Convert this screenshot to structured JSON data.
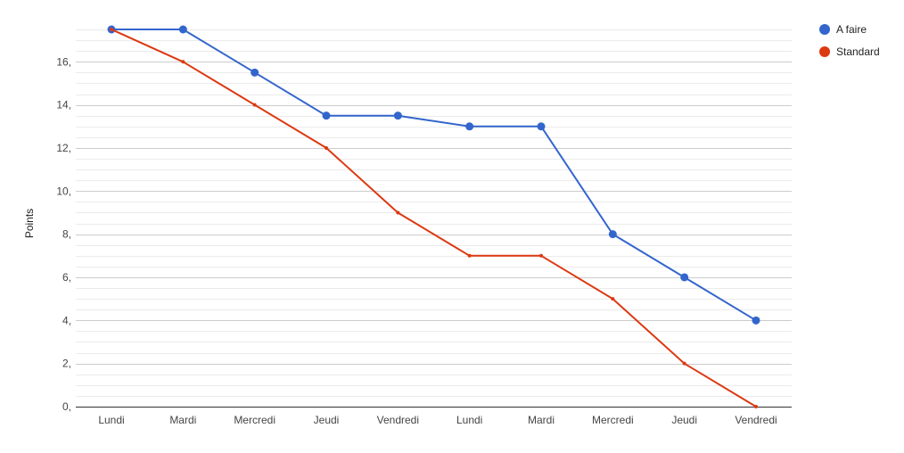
{
  "colors": {
    "background": "#ffffff",
    "major_grid": "#cccccc",
    "minor_grid": "#ebebeb",
    "baseline": "#333333",
    "text": "#444444"
  },
  "chart_data": {
    "type": "line",
    "title": "",
    "xlabel": "",
    "ylabel": "Points",
    "ylim": [
      0,
      17.5
    ],
    "y_ticks": [
      0,
      2,
      4,
      6,
      8,
      10,
      12,
      14,
      16
    ],
    "y_tick_labels": [
      "0,",
      "2,",
      "4,",
      "6,",
      "8,",
      "10,",
      "12,",
      "14,",
      "16,"
    ],
    "y_minor_step": 0.5,
    "grid": true,
    "legend_position": "right",
    "categories": [
      "Lundi",
      "Mardi",
      "Mercredi",
      "Jeudi",
      "Vendredi",
      "Lundi",
      "Mardi",
      "Mercredi",
      "Jeudi",
      "Vendredi"
    ],
    "series": [
      {
        "name": "A faire",
        "color": "#3366cc",
        "marker": "large-circle",
        "values": [
          17.5,
          17.5,
          15.5,
          13.5,
          13.5,
          13,
          13,
          8,
          6,
          4
        ]
      },
      {
        "name": "Standard",
        "color": "#dc3912",
        "marker": "small-circle",
        "values": [
          17.5,
          16,
          14,
          12,
          9,
          7,
          7,
          5,
          2,
          0
        ]
      }
    ]
  }
}
